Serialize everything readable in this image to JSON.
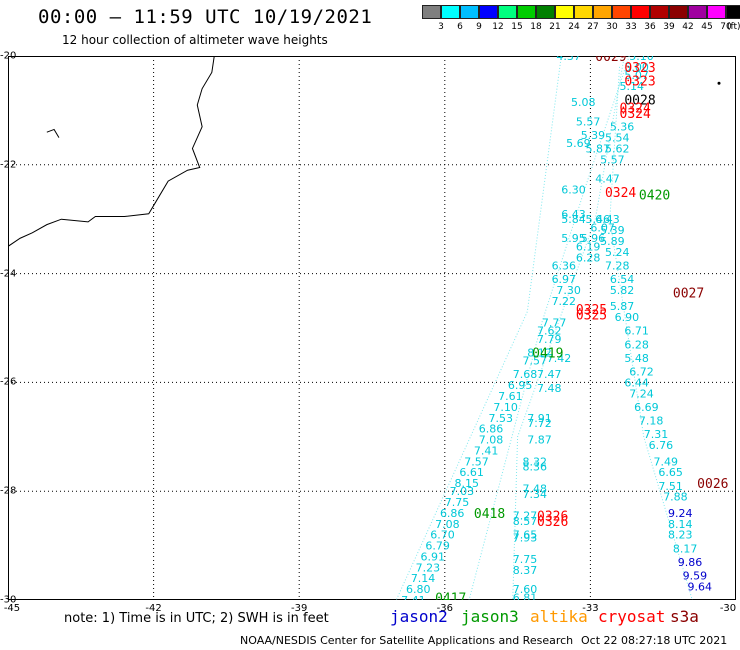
{
  "header": {
    "title": "00:00 – 11:59 UTC 10/19/2021",
    "subtitle": "12 hour collection of altimeter wave heights"
  },
  "color_scale": {
    "labels": [
      "3",
      "6",
      "9",
      "12",
      "15",
      "18",
      "21",
      "24",
      "27",
      "30",
      "33",
      "36",
      "39",
      "42",
      "45",
      "70"
    ],
    "unit": "(ft)",
    "colors": [
      "#7f7f7f",
      "#00ffff",
      "#00bfff",
      "#0000ff",
      "#00ff7f",
      "#00cc00",
      "#008000",
      "#ffff00",
      "#ffd700",
      "#ffa500",
      "#ff4500",
      "#ff0000",
      "#b00000",
      "#8b0000",
      "#a000a0",
      "#ff00ff",
      "#000000"
    ]
  },
  "axes": {
    "lat_labels": [
      "-20",
      "-22",
      "-24",
      "-26",
      "-28",
      "-30"
    ],
    "lon_labels": [
      "-45",
      "-42",
      "-39",
      "-36",
      "-33",
      "-30"
    ]
  },
  "legend": {
    "note": "note: 1) Time is in UTC; 2) SWH is in feet",
    "satellites": [
      {
        "name": "jason2",
        "color": "#0000cc"
      },
      {
        "name": "jason3",
        "color": "#009900"
      },
      {
        "name": "altika",
        "color": "#ff9900"
      },
      {
        "name": "cryosat",
        "color": "#ff0000"
      },
      {
        "name": "s3a",
        "color": "#8b0000"
      }
    ]
  },
  "footer": {
    "credit": "NOAA/NESDIS Center for Satellite Applications and Research",
    "timestamp": "Oct 22 08:27:18 UTC 2021"
  },
  "track_labels": [
    {
      "text": "0029",
      "color": "#8b0000",
      "lat": -20.0,
      "lon": -32.9
    },
    {
      "text": "0323",
      "color": "#ff0000",
      "lat": -20.2,
      "lon": -32.3
    },
    {
      "text": "0323",
      "color": "#ff0000",
      "lat": -20.45,
      "lon": -32.3
    },
    {
      "text": "0028",
      "color": "#000000",
      "lat": -20.8,
      "lon": -32.3
    },
    {
      "text": "0324",
      "color": "#ff0000",
      "lat": -20.95,
      "lon": -32.4
    },
    {
      "text": "0324",
      "color": "#ff0000",
      "lat": -21.05,
      "lon": -32.4
    },
    {
      "text": "0324",
      "color": "#ff0000",
      "lat": -22.5,
      "lon": -32.7
    },
    {
      "text": "0420",
      "color": "#009900",
      "lat": -22.55,
      "lon": -32.0
    },
    {
      "text": "0027",
      "color": "#8b0000",
      "lat": -24.35,
      "lon": -31.3
    },
    {
      "text": "0325",
      "color": "#ff0000",
      "lat": -24.65,
      "lon": -33.3
    },
    {
      "text": "0325",
      "color": "#ff0000",
      "lat": -24.75,
      "lon": -33.3
    },
    {
      "text": "0419",
      "color": "#009900",
      "lat": -25.45,
      "lon": -34.2
    },
    {
      "text": "0026",
      "color": "#8b0000",
      "lat": -27.85,
      "lon": -30.8
    },
    {
      "text": "0418",
      "color": "#009900",
      "lat": -28.4,
      "lon": -35.4
    },
    {
      "text": "0326",
      "color": "#ff0000",
      "lat": -28.45,
      "lon": -34.1
    },
    {
      "text": "0326",
      "color": "#ff0000",
      "lat": -28.55,
      "lon": -34.1
    },
    {
      "text": "0417",
      "color": "#009900",
      "lat": -29.95,
      "lon": -36.2
    }
  ],
  "wave_heights": {
    "cyan": [
      {
        "v": "4.37",
        "lat": -20.0,
        "lon": -33.7
      },
      {
        "v": "5.10",
        "lat": -20.0,
        "lon": -32.2
      },
      {
        "v": "5.00",
        "lat": -20.2,
        "lon": -32.3
      },
      {
        "v": "5.07",
        "lat": -20.35,
        "lon": -32.3
      },
      {
        "v": "5.14",
        "lat": -20.55,
        "lon": -32.4
      },
      {
        "v": "5.08",
        "lat": -20.85,
        "lon": -33.4
      },
      {
        "v": "5.57",
        "lat": -21.2,
        "lon": -33.3
      },
      {
        "v": "5.36",
        "lat": -21.3,
        "lon": -32.6
      },
      {
        "v": "5.39",
        "lat": -21.45,
        "lon": -33.2
      },
      {
        "v": "5.54",
        "lat": -21.5,
        "lon": -32.7
      },
      {
        "v": "5.69",
        "lat": -21.6,
        "lon": -33.5
      },
      {
        "v": "5.87",
        "lat": -21.7,
        "lon": -33.1
      },
      {
        "v": "5.62",
        "lat": -21.7,
        "lon": -32.7
      },
      {
        "v": "5.57",
        "lat": -21.9,
        "lon": -32.8
      },
      {
        "v": "4.47",
        "lat": -22.25,
        "lon": -32.9
      },
      {
        "v": "6.30",
        "lat": -22.45,
        "lon": -33.6
      },
      {
        "v": "6.43",
        "lat": -22.9,
        "lon": -33.6
      },
      {
        "v": "5.84",
        "lat": -23.0,
        "lon": -33.6
      },
      {
        "v": "5.46",
        "lat": -23.0,
        "lon": -33.1
      },
      {
        "v": "6.43",
        "lat": -23.0,
        "lon": -32.9
      },
      {
        "v": "6.07",
        "lat": -23.15,
        "lon": -33.0
      },
      {
        "v": "5.39",
        "lat": -23.2,
        "lon": -32.8
      },
      {
        "v": "5.95",
        "lat": -23.35,
        "lon": -33.6
      },
      {
        "v": "5.96",
        "lat": -23.35,
        "lon": -33.2
      },
      {
        "v": "5.89",
        "lat": -23.4,
        "lon": -32.8
      },
      {
        "v": "6.19",
        "lat": -23.5,
        "lon": -33.3
      },
      {
        "v": "5.24",
        "lat": -23.6,
        "lon": -32.7
      },
      {
        "v": "6.28",
        "lat": -23.7,
        "lon": -33.3
      },
      {
        "v": "6.36",
        "lat": -23.85,
        "lon": -33.8
      },
      {
        "v": "7.28",
        "lat": -23.85,
        "lon": -32.7
      },
      {
        "v": "6.97",
        "lat": -24.1,
        "lon": -33.8
      },
      {
        "v": "6.54",
        "lat": -24.1,
        "lon": -32.6
      },
      {
        "v": "7.30",
        "lat": -24.3,
        "lon": -33.7
      },
      {
        "v": "5.82",
        "lat": -24.3,
        "lon": -32.6
      },
      {
        "v": "7.22",
        "lat": -24.5,
        "lon": -33.8
      },
      {
        "v": "5.87",
        "lat": -24.6,
        "lon": -32.6
      },
      {
        "v": "7.77",
        "lat": -24.9,
        "lon": -34.0
      },
      {
        "v": "6.90",
        "lat": -24.8,
        "lon": -32.5
      },
      {
        "v": "7.62",
        "lat": -25.05,
        "lon": -34.1
      },
      {
        "v": "6.71",
        "lat": -25.05,
        "lon": -32.3
      },
      {
        "v": "7.79",
        "lat": -25.2,
        "lon": -34.1
      },
      {
        "v": "6.28",
        "lat": -25.3,
        "lon": -32.3
      },
      {
        "v": "8.12",
        "lat": -25.45,
        "lon": -34.3
      },
      {
        "v": "5.48",
        "lat": -25.55,
        "lon": -32.3
      },
      {
        "v": "7.57",
        "lat": -25.6,
        "lon": -34.4
      },
      {
        "v": "7.42",
        "lat": -25.55,
        "lon": -33.9
      },
      {
        "v": "6.72",
        "lat": -25.8,
        "lon": -32.2
      },
      {
        "v": "7.68",
        "lat": -25.85,
        "lon": -34.6
      },
      {
        "v": "7.47",
        "lat": -25.85,
        "lon": -34.1
      },
      {
        "v": "6.44",
        "lat": -26.0,
        "lon": -32.3
      },
      {
        "v": "6.95",
        "lat": -26.05,
        "lon": -34.7
      },
      {
        "v": "7.48",
        "lat": -26.1,
        "lon": -34.1
      },
      {
        "v": "7.24",
        "lat": -26.2,
        "lon": -32.2
      },
      {
        "v": "7.61",
        "lat": -26.25,
        "lon": -34.9
      },
      {
        "v": "6.69",
        "lat": -26.45,
        "lon": -32.1
      },
      {
        "v": "7.10",
        "lat": -26.45,
        "lon": -35.0
      },
      {
        "v": "7.53",
        "lat": -26.65,
        "lon": -35.1
      },
      {
        "v": "7.91",
        "lat": -26.65,
        "lon": -34.3
      },
      {
        "v": "7.18",
        "lat": -26.7,
        "lon": -32.0
      },
      {
        "v": "7.72",
        "lat": -26.75,
        "lon": -34.3
      },
      {
        "v": "6.86",
        "lat": -26.85,
        "lon": -35.3
      },
      {
        "v": "7.31",
        "lat": -26.95,
        "lon": -31.9
      },
      {
        "v": "7.08",
        "lat": -27.05,
        "lon": -35.3
      },
      {
        "v": "7.87",
        "lat": -27.05,
        "lon": -34.3
      },
      {
        "v": "6.76",
        "lat": -27.15,
        "lon": -31.8
      },
      {
        "v": "7.41",
        "lat": -27.25,
        "lon": -35.4
      },
      {
        "v": "7.57",
        "lat": -27.45,
        "lon": -35.6
      },
      {
        "v": "8.32",
        "lat": -27.45,
        "lon": -34.4
      },
      {
        "v": "7.49",
        "lat": -27.45,
        "lon": -31.7
      },
      {
        "v": "8.36",
        "lat": -27.55,
        "lon": -34.4
      },
      {
        "v": "6.61",
        "lat": -27.65,
        "lon": -35.7
      },
      {
        "v": "6.65",
        "lat": -27.65,
        "lon": -31.6
      },
      {
        "v": "8.15",
        "lat": -27.85,
        "lon": -35.8
      },
      {
        "v": "7.51",
        "lat": -27.9,
        "lon": -31.6
      },
      {
        "v": "7.03",
        "lat": -28.0,
        "lon": -35.9
      },
      {
        "v": "7.48",
        "lat": -27.95,
        "lon": -34.4
      },
      {
        "v": "7.34",
        "lat": -28.05,
        "lon": -34.4
      },
      {
        "v": "7.88",
        "lat": -28.1,
        "lon": -31.5
      },
      {
        "v": "7.75",
        "lat": -28.2,
        "lon": -36.0
      },
      {
        "v": "6.86",
        "lat": -28.4,
        "lon": -36.1
      },
      {
        "v": "7.27",
        "lat": -28.45,
        "lon": -34.6
      },
      {
        "v": "8.57",
        "lat": -28.55,
        "lon": -34.6
      },
      {
        "v": "8.14",
        "lat": -28.6,
        "lon": -31.4
      },
      {
        "v": "7.08",
        "lat": -28.6,
        "lon": -36.2
      },
      {
        "v": "6.70",
        "lat": -28.8,
        "lon": -36.3
      },
      {
        "v": "7.65",
        "lat": -28.8,
        "lon": -34.6
      },
      {
        "v": "7.93",
        "lat": -28.85,
        "lon": -34.6
      },
      {
        "v": "8.23",
        "lat": -28.8,
        "lon": -31.4
      },
      {
        "v": "6.79",
        "lat": -29.0,
        "lon": -36.4
      },
      {
        "v": "8.17",
        "lat": -29.05,
        "lon": -31.3
      },
      {
        "v": "6.91",
        "lat": -29.2,
        "lon": -36.5
      },
      {
        "v": "7.75",
        "lat": -29.25,
        "lon": -34.6
      },
      {
        "v": "7.23",
        "lat": -29.4,
        "lon": -36.6
      },
      {
        "v": "8.37",
        "lat": -29.45,
        "lon": -34.6
      },
      {
        "v": "7.14",
        "lat": -29.6,
        "lon": -36.7
      },
      {
        "v": "6.80",
        "lat": -29.8,
        "lon": -36.8
      },
      {
        "v": "7.60",
        "lat": -29.8,
        "lon": -34.6
      },
      {
        "v": "7.41",
        "lat": -30.0,
        "lon": -36.9
      },
      {
        "v": "6.81",
        "lat": -29.95,
        "lon": -34.6
      }
    ],
    "blue": [
      {
        "v": "9.24",
        "lat": -28.4,
        "lon": -31.4
      },
      {
        "v": "9.86",
        "lat": -29.3,
        "lon": -31.2
      },
      {
        "v": "9.59",
        "lat": -29.55,
        "lon": -31.1
      },
      {
        "v": "9.64",
        "lat": -29.75,
        "lon": -31.0
      }
    ]
  }
}
